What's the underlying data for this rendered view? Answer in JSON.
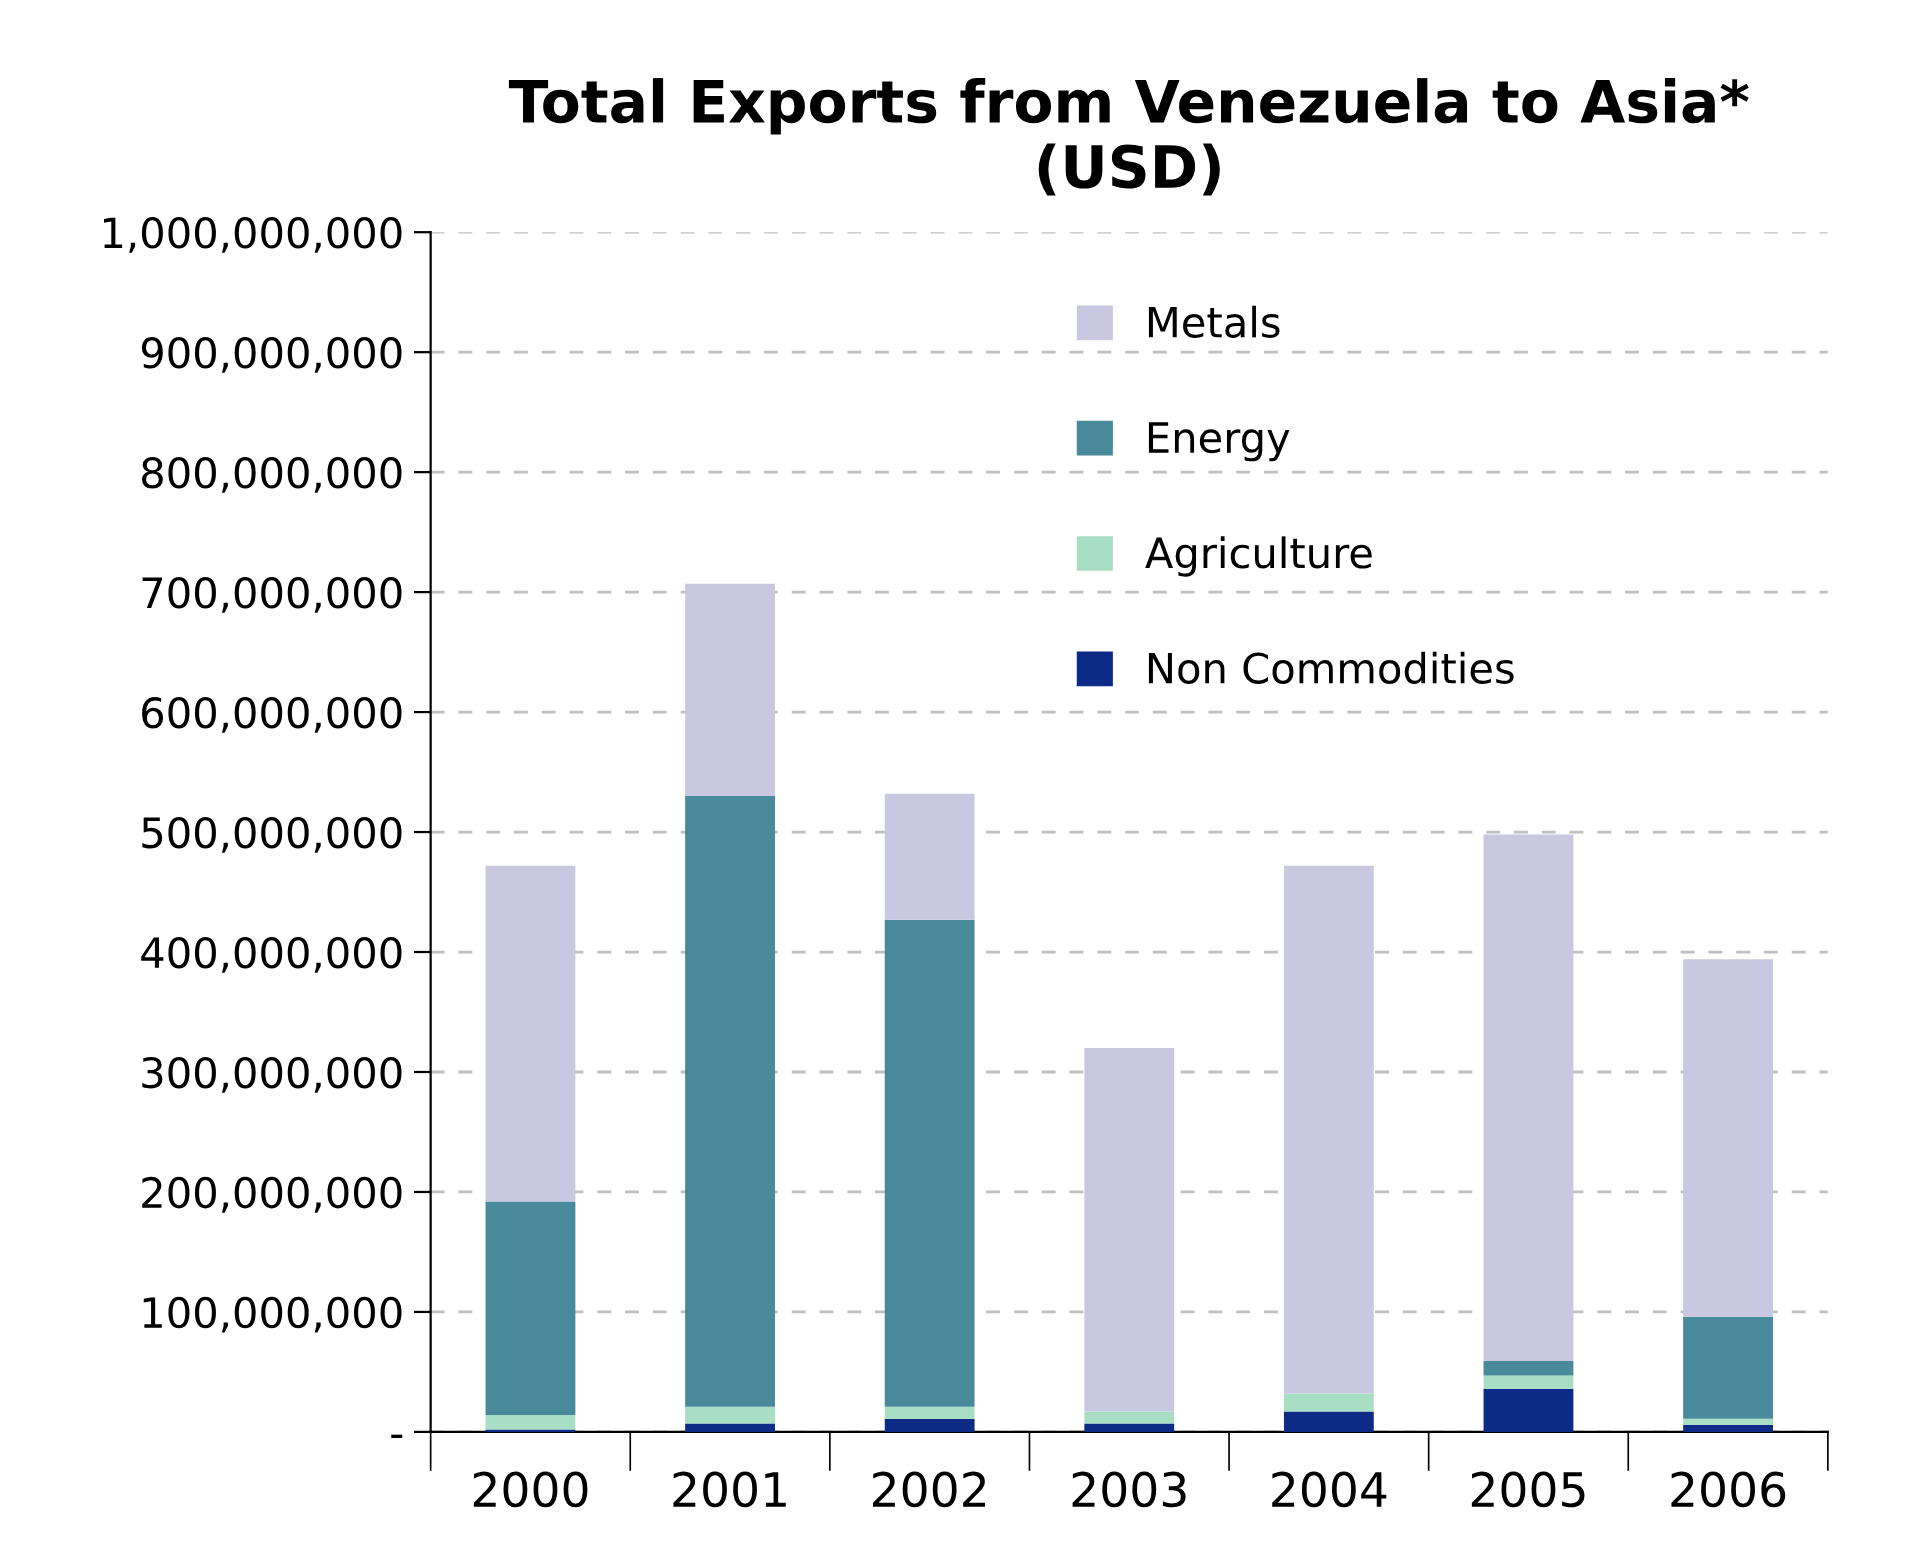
{
  "chart_data": {
    "type": "bar",
    "title": "Total Exports from Venezuela to Asia*\n(USD)",
    "categories": [
      "2000",
      "2001",
      "2002",
      "2003",
      "2004",
      "2005",
      "2006"
    ],
    "stacked": true,
    "series": [
      {
        "name": "Non Commodities",
        "color": "#0d2a87",
        "values": [
          2000000,
          7000000,
          11000000,
          7000000,
          17000000,
          36000000,
          6000000
        ]
      },
      {
        "name": "Agriculture",
        "color": "#a8dfc4",
        "values": [
          12000000,
          14000000,
          10000000,
          10000000,
          15000000,
          11000000,
          5000000
        ]
      },
      {
        "name": "Energy",
        "color": "#48899a",
        "values": [
          178000000,
          509000000,
          406000000,
          0,
          0,
          12000000,
          85000000
        ]
      },
      {
        "name": "Metals",
        "color": "#cac8e0",
        "values": [
          280000000,
          177000000,
          105000000,
          303000000,
          440000000,
          439000000,
          298000000
        ]
      }
    ],
    "ylim": [
      0,
      1000000000
    ],
    "yticks": [
      {
        "value": 0,
        "label": "-"
      },
      {
        "value": 100000000,
        "label": "100,000,000"
      },
      {
        "value": 200000000,
        "label": "200,000,000"
      },
      {
        "value": 300000000,
        "label": "300,000,000"
      },
      {
        "value": 400000000,
        "label": "400,000,000"
      },
      {
        "value": 500000000,
        "label": "500,000,000"
      },
      {
        "value": 600000000,
        "label": "600,000,000"
      },
      {
        "value": 700000000,
        "label": "700,000,000"
      },
      {
        "value": 800000000,
        "label": "800,000,000"
      },
      {
        "value": 900000000,
        "label": "900,000,000"
      },
      {
        "value": 1000000000,
        "label": "1,000,000,000"
      }
    ],
    "grid": "y",
    "legend": "top"
  }
}
